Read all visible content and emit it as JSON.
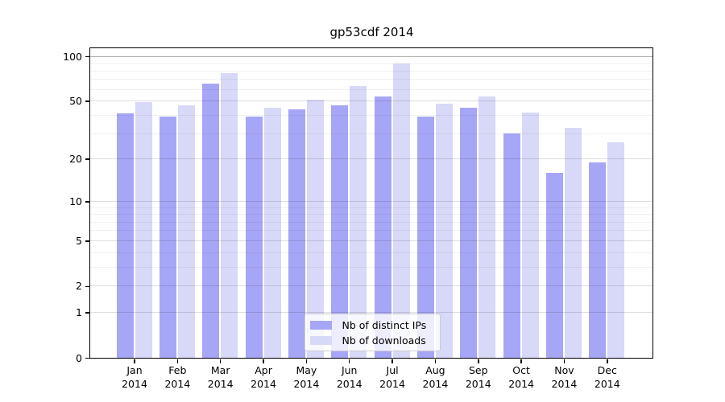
{
  "chart_data": {
    "type": "bar",
    "title": "gp53cdf 2014",
    "year": "2014",
    "categories": [
      "Jan",
      "Feb",
      "Mar",
      "Apr",
      "May",
      "Jun",
      "Jul",
      "Aug",
      "Sep",
      "Oct",
      "Nov",
      "Dec"
    ],
    "series": [
      {
        "name": "Nb of distinct IPs",
        "color": "#a6a6f6",
        "values": [
          41,
          39,
          66,
          39,
          44,
          47,
          54,
          39,
          45,
          30,
          16,
          19
        ]
      },
      {
        "name": "Nb of downloads",
        "color": "#d8d8f8",
        "values": [
          49,
          47,
          77,
          45,
          51,
          63,
          90,
          48,
          54,
          42,
          33,
          26
        ]
      }
    ],
    "xlabel": "",
    "ylabel": "",
    "y_scale": "log1p",
    "y_ticks": [
      0,
      1,
      2,
      5,
      10,
      20,
      50,
      100
    ],
    "y_minor_ticks": [
      3,
      4,
      6,
      7,
      8,
      9,
      30,
      40,
      60,
      70,
      80,
      90
    ],
    "ylim": [
      0,
      114
    ],
    "grid": true,
    "legend_position": "inside-bottom-center"
  },
  "colors": {
    "distinct_ips_bar": "#a6a6f6",
    "downloads_bar": "#d8d8f8",
    "axis": "#000000",
    "legend_border": "#cccccc"
  }
}
